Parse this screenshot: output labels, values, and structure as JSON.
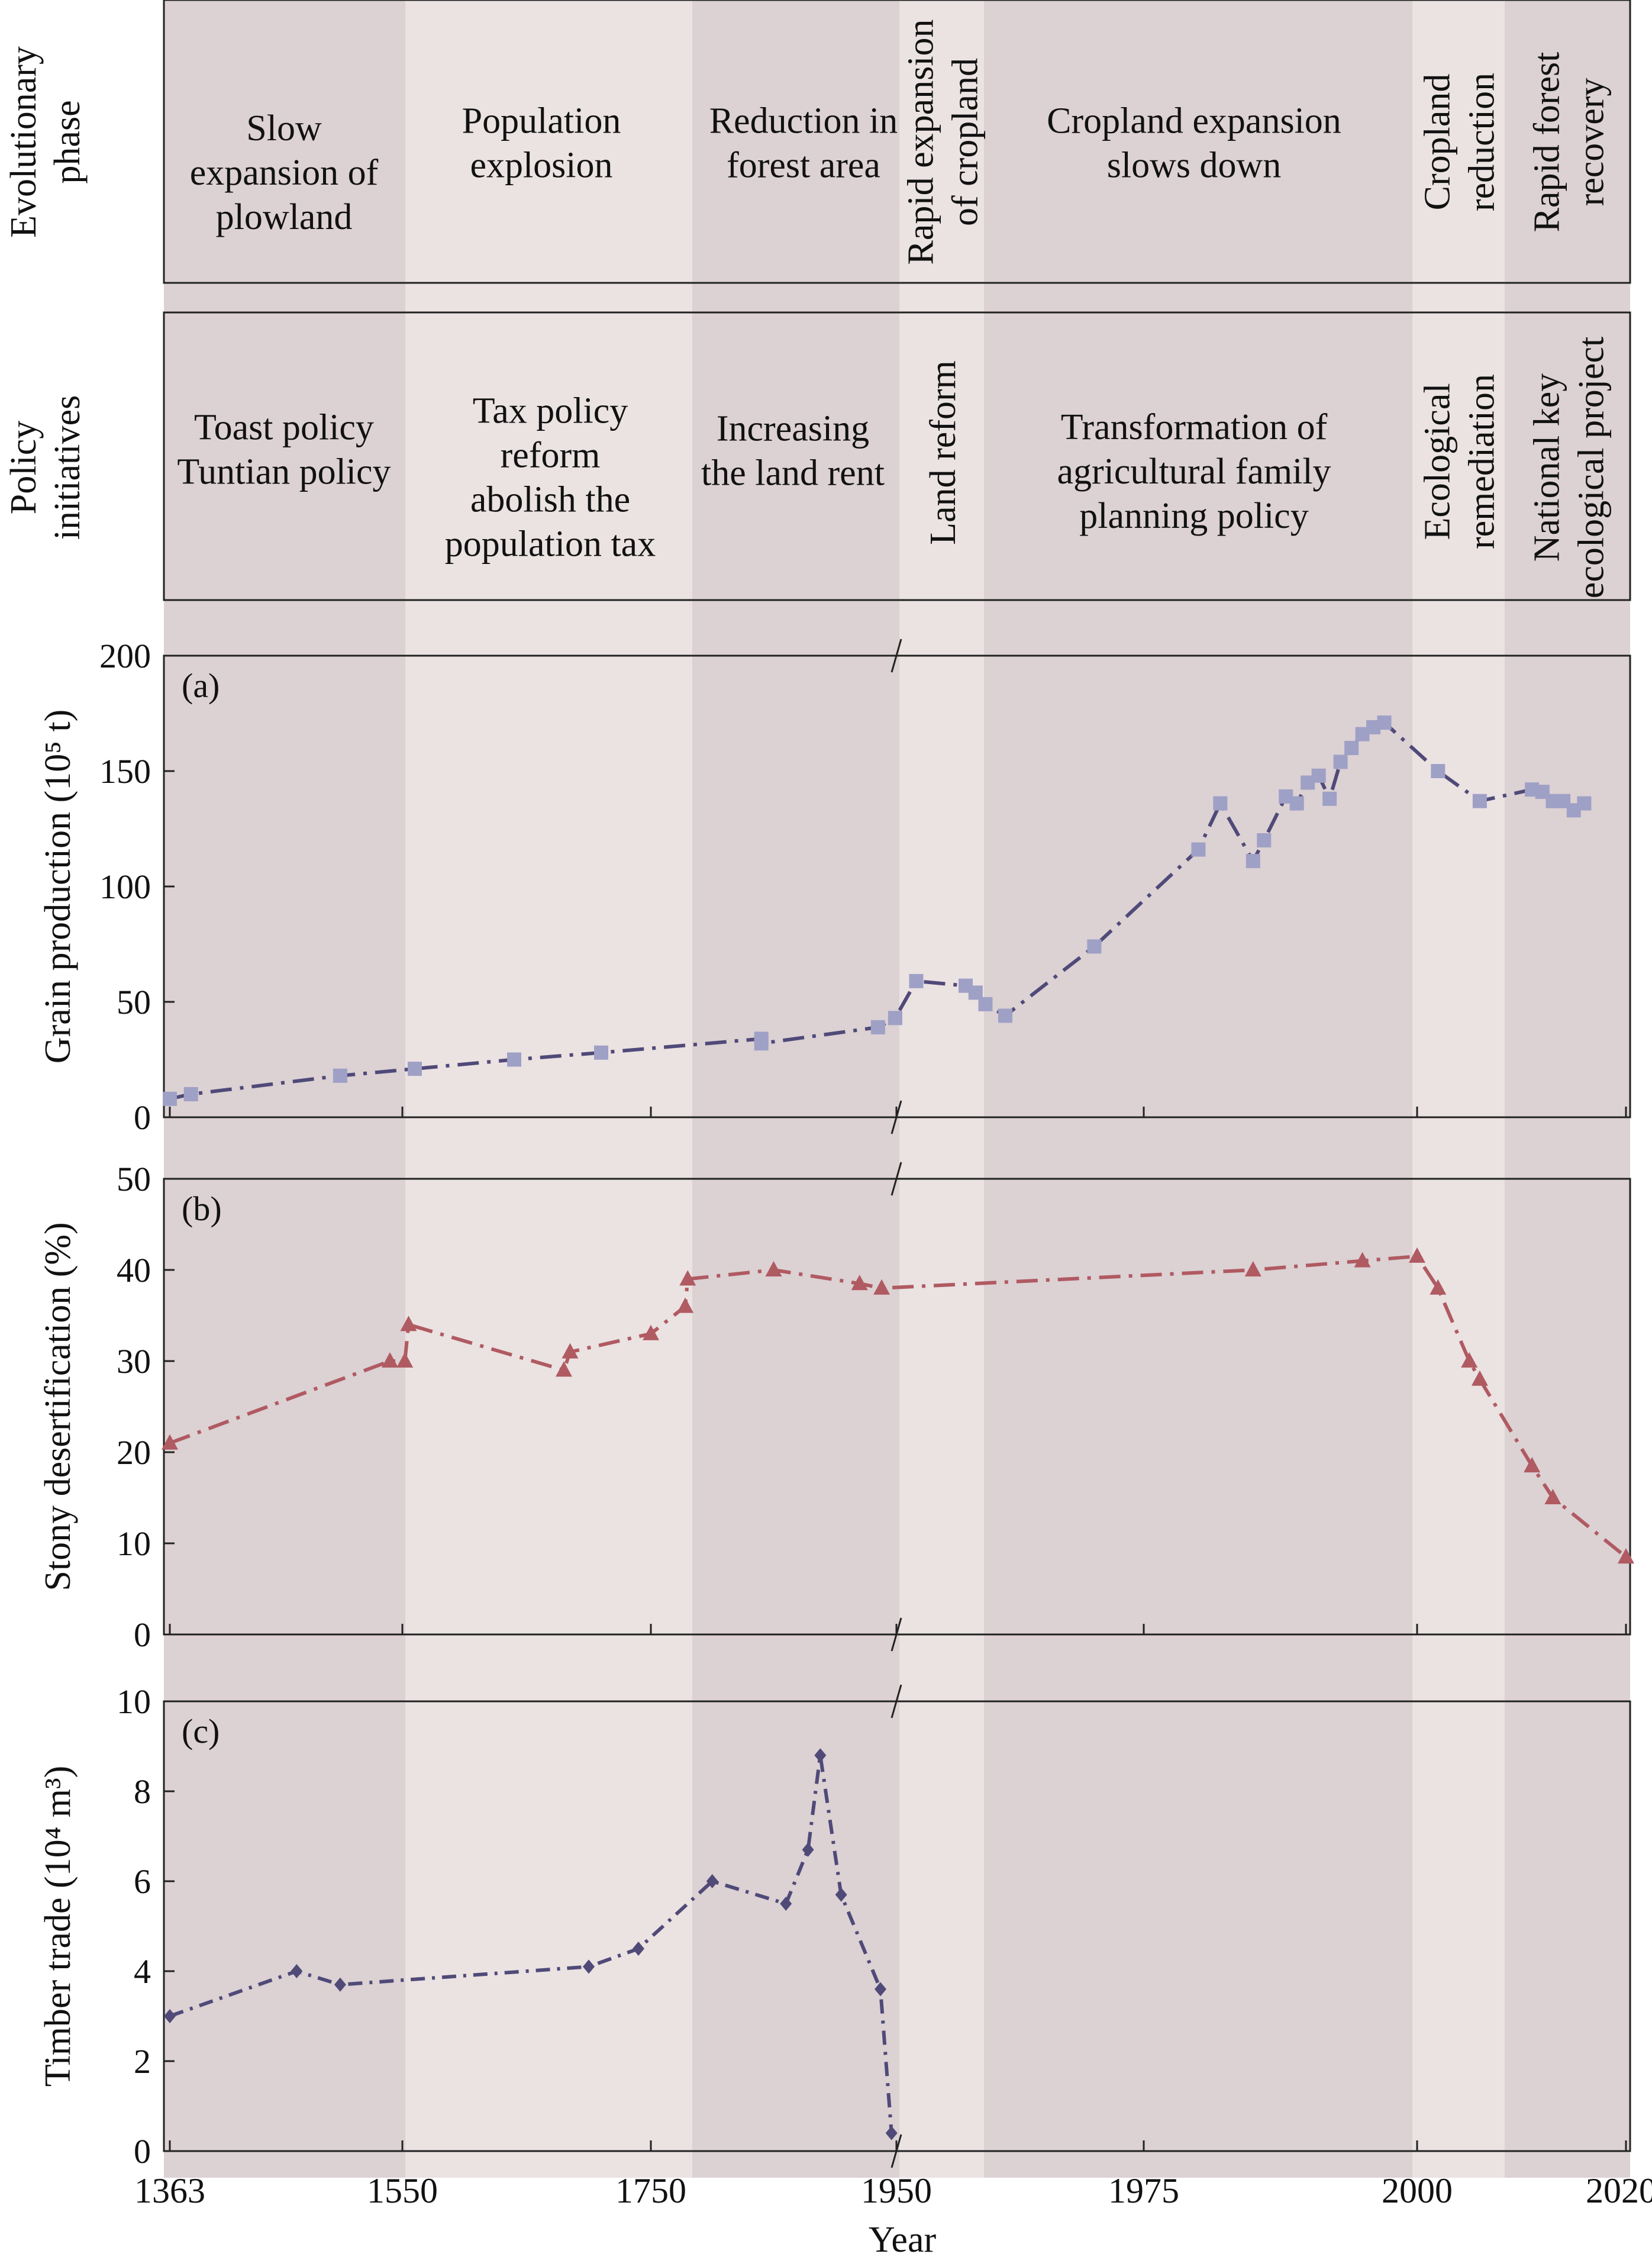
{
  "colors": {
    "band_dark": "#dcd1d3",
    "band_light": "#ebe2e2",
    "grain_line": "#4f4a78",
    "grain_marker": "#9fa0c6",
    "desert_line": "#b05a62",
    "desert_marker": "#b05a62",
    "timber_line": "#4f4a78",
    "timber_marker": "#4f4a78",
    "frame": "#222222"
  },
  "row_labels": {
    "phase": [
      "Evolutionary",
      "phase"
    ],
    "policy": [
      "Policy",
      "initiatives"
    ]
  },
  "periods": [
    {
      "phase": [
        "Slow",
        "expansion of",
        "plowland"
      ],
      "phase_vertical": false,
      "policy": [
        "Toast policy",
        "Tuntian policy"
      ],
      "policy_vertical": false,
      "shade": "dark"
    },
    {
      "phase": [
        "Population",
        "explosion"
      ],
      "phase_vertical": false,
      "policy": [
        "Tax policy",
        "reform",
        "abolish the",
        "population tax"
      ],
      "policy_vertical": false,
      "shade": "light"
    },
    {
      "phase": [
        "Reduction in",
        "forest area"
      ],
      "phase_vertical": false,
      "policy": [
        "Increasing",
        "the land rent"
      ],
      "policy_vertical": false,
      "shade": "dark"
    },
    {
      "phase": [
        "Rapid expansion",
        "of cropland"
      ],
      "phase_vertical": true,
      "policy": [
        "Land reform"
      ],
      "policy_vertical": true,
      "shade": "light"
    },
    {
      "phase": [
        "Cropland expansion",
        "slows down"
      ],
      "phase_vertical": false,
      "policy": [
        "Transformation of",
        "agricultural family",
        "planning policy"
      ],
      "policy_vertical": false,
      "shade": "dark"
    },
    {
      "phase": [
        "Cropland",
        "reduction"
      ],
      "phase_vertical": true,
      "policy": [
        "Ecological",
        "remediation"
      ],
      "policy_vertical": true,
      "shade": "light"
    },
    {
      "phase": [
        "Rapid forest",
        "recovery"
      ],
      "phase_vertical": true,
      "policy": [
        "National key",
        "ecological project"
      ],
      "policy_vertical": true,
      "shade": "dark"
    }
  ],
  "chart_data": [
    {
      "type": "line",
      "panel_label": "(a)",
      "ylabel": "Grain production (10⁵ t)",
      "ylim": [
        0,
        200
      ],
      "yticks": [
        0,
        50,
        100,
        150,
        200
      ],
      "xlabel": "Year",
      "xticks": [
        "1363",
        "1550",
        "1750",
        "1950",
        "1975",
        "2000",
        "2020"
      ],
      "x_axis_break": "1950",
      "marker": "square",
      "series": [
        {
          "points": [
            {
              "x": 1363,
              "y": 8
            },
            {
              "x": 1380,
              "y": 10
            },
            {
              "x": 1500,
              "y": 18
            },
            {
              "x": 1560,
              "y": 21
            },
            {
              "x": 1640,
              "y": 25
            },
            {
              "x": 1710,
              "y": 28
            },
            {
              "x": 1840,
              "y": 34
            },
            {
              "x": 1840,
              "y": 32
            },
            {
              "x": 1935,
              "y": 39
            },
            {
              "x": 1949,
              "y": 43
            },
            {
              "x": 1952,
              "y": 59
            },
            {
              "x": 1957,
              "y": 57
            },
            {
              "x": 1958,
              "y": 54
            },
            {
              "x": 1959,
              "y": 49
            },
            {
              "x": 1961,
              "y": 44
            },
            {
              "x": 1970,
              "y": 74
            },
            {
              "x": 1980,
              "y": 116
            },
            {
              "x": 1982,
              "y": 136
            },
            {
              "x": 1985,
              "y": 111
            },
            {
              "x": 1986,
              "y": 120
            },
            {
              "x": 1988,
              "y": 139
            },
            {
              "x": 1989,
              "y": 136
            },
            {
              "x": 1990,
              "y": 145
            },
            {
              "x": 1991,
              "y": 148
            },
            {
              "x": 1992,
              "y": 138
            },
            {
              "x": 1993,
              "y": 154
            },
            {
              "x": 1994,
              "y": 160
            },
            {
              "x": 1995,
              "y": 166
            },
            {
              "x": 1996,
              "y": 169
            },
            {
              "x": 1997,
              "y": 171
            },
            {
              "x": 2002,
              "y": 150
            },
            {
              "x": 2006,
              "y": 137
            },
            {
              "x": 2011,
              "y": 142
            },
            {
              "x": 2012,
              "y": 141
            },
            {
              "x": 2013,
              "y": 137
            },
            {
              "x": 2014,
              "y": 137
            },
            {
              "x": 2015,
              "y": 133
            },
            {
              "x": 2016,
              "y": 136
            }
          ]
        }
      ]
    },
    {
      "type": "line",
      "panel_label": "(b)",
      "ylabel": "Stony desertification (%)",
      "ylim": [
        0,
        50
      ],
      "yticks": [
        0,
        10,
        20,
        30,
        40,
        50
      ],
      "xlabel": "Year",
      "xticks": [
        "1363",
        "1550",
        "1750",
        "1950",
        "1975",
        "2000",
        "2020"
      ],
      "x_axis_break": "1950",
      "marker": "triangle",
      "series": [
        {
          "points": [
            {
              "x": 1363,
              "y": 21
            },
            {
              "x": 1540,
              "y": 30
            },
            {
              "x": 1552,
              "y": 30
            },
            {
              "x": 1555,
              "y": 34
            },
            {
              "x": 1680,
              "y": 29
            },
            {
              "x": 1685,
              "y": 31
            },
            {
              "x": 1750,
              "y": 33
            },
            {
              "x": 1778,
              "y": 36
            },
            {
              "x": 1780,
              "y": 39
            },
            {
              "x": 1850,
              "y": 40
            },
            {
              "x": 1920,
              "y": 38.5
            },
            {
              "x": 1938,
              "y": 38
            },
            {
              "x": 1985,
              "y": 40
            },
            {
              "x": 1995,
              "y": 41
            },
            {
              "x": 2000,
              "y": 41.5
            },
            {
              "x": 2002,
              "y": 38
            },
            {
              "x": 2005,
              "y": 30
            },
            {
              "x": 2006,
              "y": 28
            },
            {
              "x": 2011,
              "y": 18.5
            },
            {
              "x": 2013,
              "y": 15
            },
            {
              "x": 2020,
              "y": 8.5
            }
          ]
        }
      ]
    },
    {
      "type": "line",
      "panel_label": "(c)",
      "ylabel": "Timber trade (10⁴ m³)",
      "ylim": [
        0,
        10
      ],
      "yticks": [
        0,
        2,
        4,
        6,
        8,
        10
      ],
      "xlabel": "Year",
      "xticks": [
        "1363",
        "1550",
        "1750",
        "1950",
        "1975",
        "2000",
        "2020"
      ],
      "x_axis_break": "1950",
      "marker": "diamond",
      "series": [
        {
          "points": [
            {
              "x": 1363,
              "y": 3.0
            },
            {
              "x": 1465,
              "y": 4.0
            },
            {
              "x": 1500,
              "y": 3.7
            },
            {
              "x": 1700,
              "y": 4.1
            },
            {
              "x": 1740,
              "y": 4.5
            },
            {
              "x": 1800,
              "y": 6.0
            },
            {
              "x": 1860,
              "y": 5.5
            },
            {
              "x": 1878,
              "y": 6.7
            },
            {
              "x": 1888,
              "y": 8.8
            },
            {
              "x": 1905,
              "y": 5.7
            },
            {
              "x": 1937,
              "y": 3.6
            },
            {
              "x": 1946,
              "y": 0.4
            }
          ]
        }
      ]
    }
  ]
}
